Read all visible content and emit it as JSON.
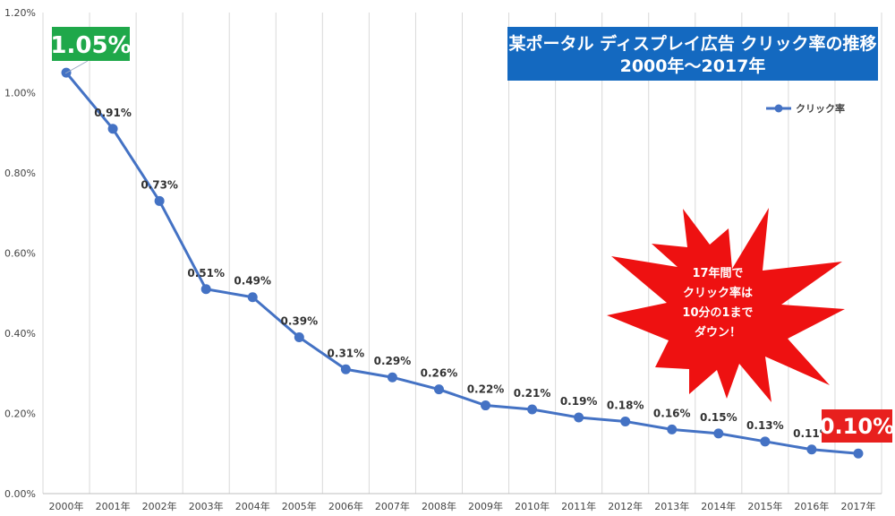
{
  "chart_data": {
    "type": "line",
    "title_lines": [
      "某ポータル ディスプレイ広告 クリック率の推移",
      "2000年～2017年"
    ],
    "categories": [
      "2000年",
      "2001年",
      "2002年",
      "2003年",
      "2004年",
      "2005年",
      "2006年",
      "2007年",
      "2008年",
      "2009年",
      "2010年",
      "2011年",
      "2012年",
      "2013年",
      "2014年",
      "2015年",
      "2016年",
      "2017年"
    ],
    "series": [
      {
        "name": "クリック率",
        "values": [
          1.05,
          0.91,
          0.73,
          0.51,
          0.49,
          0.39,
          0.31,
          0.29,
          0.26,
          0.22,
          0.21,
          0.19,
          0.18,
          0.16,
          0.15,
          0.13,
          0.11,
          0.1
        ],
        "labels": [
          "1.05%",
          "0.91%",
          "0.73%",
          "0.51%",
          "0.49%",
          "0.39%",
          "0.31%",
          "0.29%",
          "0.26%",
          "0.22%",
          "0.21%",
          "0.19%",
          "0.18%",
          "0.16%",
          "0.15%",
          "0.13%",
          "0.11%",
          "0.10%"
        ],
        "color": "#4472C4"
      }
    ],
    "ylim": [
      0,
      1.2
    ],
    "yticks": [
      0,
      0.2,
      0.4,
      0.6,
      0.8,
      1.0,
      1.2
    ],
    "ytick_labels": [
      "0.00%",
      "0.20%",
      "0.40%",
      "0.60%",
      "0.80%",
      "1.00%",
      "1.20%"
    ],
    "grid": "vertical",
    "legend_position": "top-right",
    "highlight_first": {
      "text": "1.05%",
      "color": "#1FA84A"
    },
    "highlight_last": {
      "text": "0.10%",
      "color": "#E8201E"
    },
    "callout": {
      "lines": [
        "17年間で",
        "クリック率は",
        "10分の1まで",
        "ダウン！"
      ],
      "color": "#EE1111"
    },
    "title_bg_color": "#1469C0"
  }
}
